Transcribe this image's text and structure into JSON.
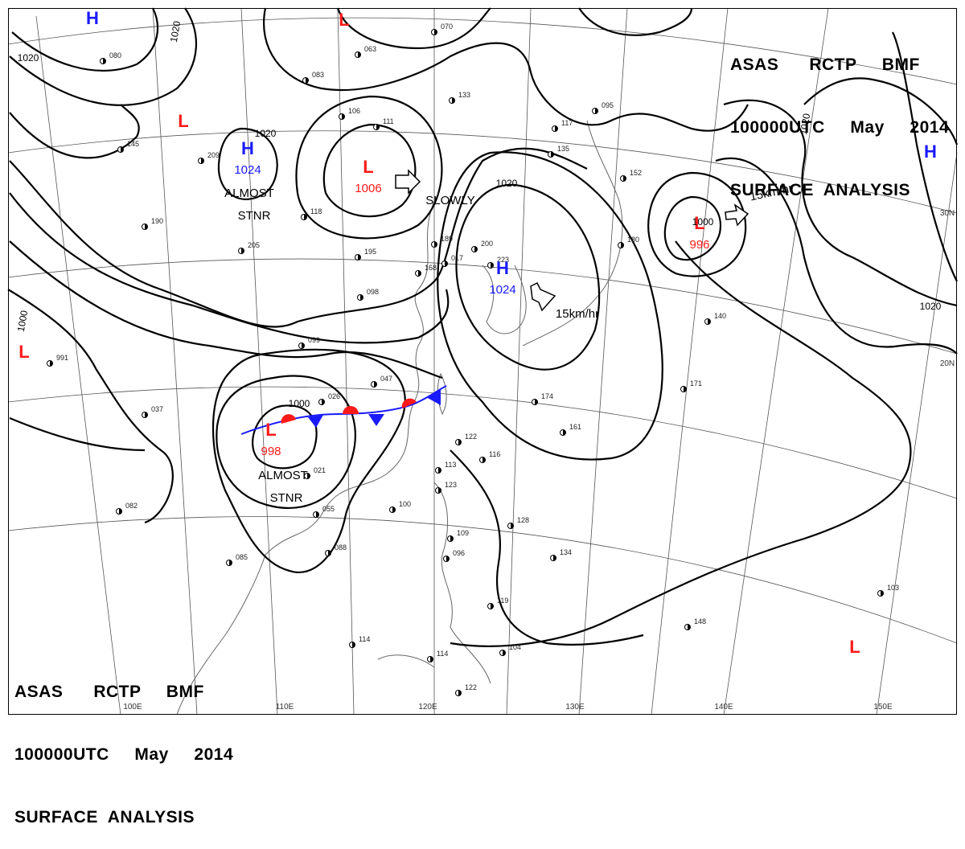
{
  "header": {
    "line1": "ASAS      RCTP     BMF",
    "line2": "100000UTC     May     2014",
    "line3": "SURFACE  ANALYSIS"
  },
  "footer": {
    "line1": "ASAS      RCTP     BMF",
    "line2": "100000UTC     May     2014",
    "line3": "SURFACE  ANALYSIS"
  },
  "pressure_centers": [
    {
      "type": "H",
      "value": "",
      "color": "#1a1aff"
    },
    {
      "type": "L",
      "value": "",
      "color": "#ff1a1a"
    },
    {
      "type": "L",
      "value": "",
      "color": "#ff1a1a"
    },
    {
      "type": "H",
      "value": "1024",
      "color": "#1a1aff"
    },
    {
      "type": "L",
      "value": "1006",
      "color": "#ff1a1a"
    },
    {
      "type": "H",
      "value": "1024",
      "color": "#1a1aff"
    },
    {
      "type": "L",
      "value": "996",
      "color": "#ff1a1a"
    },
    {
      "type": "H",
      "value": "",
      "color": "#1a1aff"
    },
    {
      "type": "L",
      "value": "",
      "color": "#ff1a1a"
    },
    {
      "type": "L",
      "value": "998",
      "color": "#ff1a1a"
    },
    {
      "type": "L",
      "value": "",
      "color": "#ff1a1a"
    }
  ],
  "isobar_labels": [
    "1020",
    "1020",
    "1020",
    "1020",
    "1020",
    "1020",
    "1000",
    "1000",
    "1000"
  ],
  "annotations": [
    "ALMOST",
    "STNR",
    "SLOWLY",
    "15km/hr",
    "15km/hr",
    "ALMOST",
    "STNR"
  ],
  "lon_labels": [
    "100E",
    "110E",
    "120E",
    "130E",
    "140E",
    "150E"
  ],
  "lat_labels": [
    "30N",
    "20N"
  ],
  "station_numbers": [
    "080",
    "063",
    "083",
    "070",
    "133",
    "106",
    "111",
    "145",
    "209",
    "118",
    "190",
    "205",
    "195",
    "189",
    "200",
    "223",
    "168",
    "098",
    "099",
    "026",
    "047",
    "174",
    "161",
    "116",
    "122",
    "113",
    "123",
    "100",
    "055",
    "088",
    "085",
    "082",
    "037",
    "134",
    "119",
    "104",
    "114",
    "122",
    "148",
    "140",
    "171",
    "152",
    "180",
    "135",
    "117",
    "095",
    "103",
    "991",
    "021",
    "017",
    "109",
    "096",
    "114",
    "128"
  ],
  "colors": {
    "high": "#1a1aff",
    "low": "#ff1a1a",
    "front_cold": "#1a1aff",
    "front_warm": "#ff1a1a",
    "isobar": "#000000",
    "grid": "#444444",
    "coast": "#555555"
  }
}
